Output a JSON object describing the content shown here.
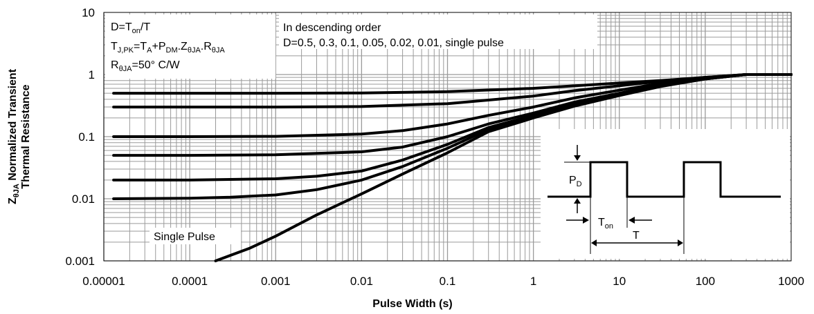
{
  "chart_data": {
    "type": "line",
    "title": "",
    "xlabel": "Pulse Width (s)",
    "ylabel_line1": "Normalized Transient",
    "ylabel_line2": "Thermal Resistance",
    "ylabel_symbol": "Z",
    "ylabel_symbol_sub": "θJA",
    "x_scale": "log",
    "y_scale": "log",
    "xlim": [
      1e-05,
      1000
    ],
    "ylim": [
      0.001,
      10
    ],
    "grid": true,
    "x_tick_labels": [
      "0.00001",
      "0.0001",
      "0.001",
      "0.01",
      "0.1",
      "1",
      "10",
      "100",
      "1000"
    ],
    "y_tick_labels": [
      "0.001",
      "0.01",
      "0.1",
      "1",
      "10"
    ],
    "x_ticks": [
      1e-05,
      0.0001,
      0.001,
      0.01,
      0.1,
      1,
      10,
      100,
      1000
    ],
    "y_ticks": [
      0.001,
      0.01,
      0.1,
      1,
      10
    ],
    "series": [
      {
        "points": [
          [
            1.3e-05,
            0.5
          ],
          [
            0.0001,
            0.5
          ],
          [
            0.001,
            0.5
          ],
          [
            0.01,
            0.505
          ],
          [
            0.1,
            0.53
          ],
          [
            1,
            0.6
          ],
          [
            10,
            0.73
          ],
          [
            30,
            0.8
          ],
          [
            100,
            0.9
          ],
          [
            300,
            1.0
          ],
          [
            1000,
            1.0
          ]
        ]
      },
      {
        "points": [
          [
            1.3e-05,
            0.3
          ],
          [
            0.0001,
            0.3
          ],
          [
            0.001,
            0.3
          ],
          [
            0.01,
            0.305
          ],
          [
            0.1,
            0.34
          ],
          [
            1,
            0.45
          ],
          [
            3,
            0.55
          ],
          [
            10,
            0.66
          ],
          [
            30,
            0.78
          ],
          [
            100,
            0.9
          ],
          [
            300,
            1.0
          ],
          [
            1000,
            1.0
          ]
        ]
      },
      {
        "points": [
          [
            1.3e-05,
            0.1
          ],
          [
            0.0001,
            0.1
          ],
          [
            0.001,
            0.101
          ],
          [
            0.01,
            0.11
          ],
          [
            0.03,
            0.125
          ],
          [
            0.1,
            0.16
          ],
          [
            0.3,
            0.22
          ],
          [
            1,
            0.3
          ],
          [
            3,
            0.42
          ],
          [
            10,
            0.56
          ],
          [
            30,
            0.72
          ],
          [
            100,
            0.88
          ],
          [
            300,
            1.0
          ],
          [
            1000,
            1.0
          ]
        ]
      },
      {
        "points": [
          [
            1.3e-05,
            0.05
          ],
          [
            0.0001,
            0.05
          ],
          [
            0.001,
            0.051
          ],
          [
            0.01,
            0.057
          ],
          [
            0.03,
            0.068
          ],
          [
            0.1,
            0.1
          ],
          [
            0.3,
            0.16
          ],
          [
            1,
            0.24
          ],
          [
            3,
            0.36
          ],
          [
            10,
            0.5
          ],
          [
            30,
            0.68
          ],
          [
            100,
            0.86
          ],
          [
            300,
            1.0
          ],
          [
            1000,
            1.0
          ]
        ]
      },
      {
        "points": [
          [
            1.3e-05,
            0.02
          ],
          [
            0.0001,
            0.02
          ],
          [
            0.001,
            0.021
          ],
          [
            0.003,
            0.023
          ],
          [
            0.01,
            0.028
          ],
          [
            0.03,
            0.042
          ],
          [
            0.1,
            0.075
          ],
          [
            0.3,
            0.14
          ],
          [
            1,
            0.22
          ],
          [
            3,
            0.33
          ],
          [
            10,
            0.48
          ],
          [
            30,
            0.66
          ],
          [
            100,
            0.85
          ],
          [
            300,
            1.0
          ],
          [
            1000,
            1.0
          ]
        ]
      },
      {
        "points": [
          [
            1.3e-05,
            0.01
          ],
          [
            0.0001,
            0.0102
          ],
          [
            0.0003,
            0.0106
          ],
          [
            0.001,
            0.0115
          ],
          [
            0.003,
            0.014
          ],
          [
            0.01,
            0.02
          ],
          [
            0.03,
            0.033
          ],
          [
            0.1,
            0.065
          ],
          [
            0.3,
            0.13
          ],
          [
            1,
            0.21
          ],
          [
            3,
            0.32
          ],
          [
            10,
            0.47
          ],
          [
            30,
            0.65
          ],
          [
            100,
            0.85
          ],
          [
            300,
            1.0
          ],
          [
            1000,
            1.0
          ]
        ]
      },
      {
        "points": [
          [
            0.0002,
            0.001
          ],
          [
            0.0005,
            0.0016
          ],
          [
            0.001,
            0.0025
          ],
          [
            0.003,
            0.0055
          ],
          [
            0.01,
            0.012
          ],
          [
            0.03,
            0.025
          ],
          [
            0.1,
            0.055
          ],
          [
            0.3,
            0.12
          ],
          [
            1,
            0.2
          ],
          [
            3,
            0.31
          ],
          [
            10,
            0.46
          ],
          [
            30,
            0.64
          ],
          [
            100,
            0.85
          ],
          [
            300,
            1.0
          ],
          [
            1000,
            1.0
          ]
        ]
      }
    ],
    "annotations": {
      "box1": {
        "line1_main": "D=T",
        "line1_sub": "on",
        "line1_tail": "/T",
        "line2_parts": [
          [
            "T",
            ""
          ],
          [
            "J,PK",
            "sub"
          ],
          [
            "=T",
            ""
          ],
          [
            "A",
            "sub"
          ],
          [
            "+P",
            ""
          ],
          [
            "DM",
            "sub"
          ],
          [
            ".Z",
            ""
          ],
          [
            "θJA",
            "sub"
          ],
          [
            ".R",
            ""
          ],
          [
            "θJA",
            "sub"
          ]
        ],
        "line3_main": "R",
        "line3_sub": "θJA",
        "line3_tail": "=50° C/W"
      },
      "box2": {
        "line1": "In descending order",
        "line2": "D=0.5, 0.3, 0.1, 0.05, 0.02, 0.01, single pulse"
      },
      "single_pulse": "Single Pulse",
      "inset": {
        "pd_main": "P",
        "pd_sub": "D",
        "ton_main": "T",
        "ton_sub": "on",
        "t_label": "T"
      }
    }
  }
}
